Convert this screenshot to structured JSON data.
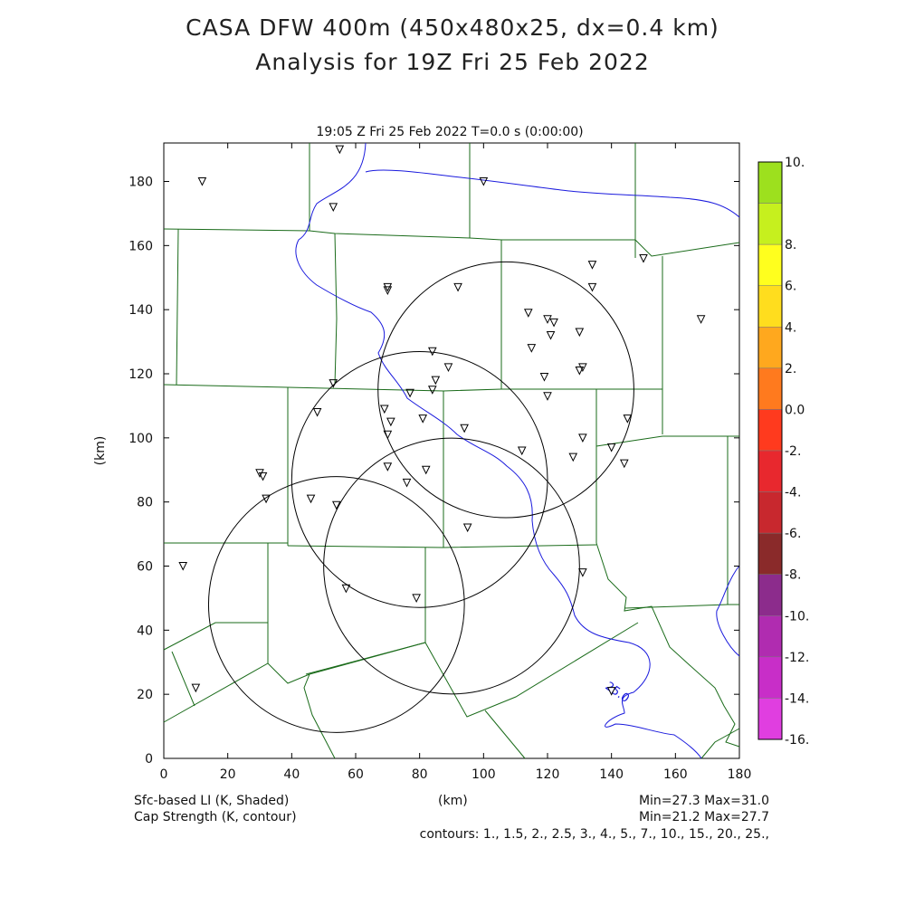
{
  "title": {
    "line1": "CASA DFW 400m (450x480x25, dx=0.4 km)",
    "line2": "Analysis for 19Z Fri 25 Feb 2022"
  },
  "plot": {
    "subtitle": "19:05 Z Fri 25 Feb 2022   T=0.0 s (0:00:00)",
    "xlabel": "(km)",
    "ylabel": "(km)",
    "xticks": [
      "0",
      "20",
      "40",
      "60",
      "80",
      "100",
      "120",
      "140",
      "160",
      "180"
    ],
    "yticks": [
      "0",
      "20",
      "40",
      "60",
      "80",
      "100",
      "120",
      "140",
      "160",
      "180"
    ],
    "contour_label": "25.0"
  },
  "colorbar": {
    "labels": [
      "10.",
      "8.",
      "6.",
      "4.",
      "2.",
      "0.0",
      "-2.",
      "-4.",
      "-6.",
      "-8.",
      "-10.",
      "-12.",
      "-14.",
      "-16."
    ],
    "colors": [
      "#9de01e",
      "#c6f01e",
      "#ffff1e",
      "#ffdd1e",
      "#ffa81e",
      "#ff7a1e",
      "#ff3a1e",
      "#e8282e",
      "#c8282e",
      "#8a2a2a",
      "#8c2c8c",
      "#b02cb0",
      "#c82ec8",
      "#e03ee0"
    ]
  },
  "footer": {
    "left1": "Sfc-based LI (K, Shaded)",
    "left2": "Cap Strength (K, contour)",
    "center": "(km)",
    "right1": "Min=27.3 Max=31.0",
    "right2": "Min=21.2 Max=27.7",
    "contours": "contours: 1., 1.5, 2., 2.5, 3., 4., 5., 7., 10., 15., 20., 25.,"
  },
  "map_colors": {
    "counties": "#1a6b1a",
    "contour": "#1a1add",
    "radar": "#000000"
  },
  "icon": "inverted-triangle-station-marker",
  "chart_data": {
    "type": "scatter",
    "xlim": [
      0,
      180
    ],
    "ylim": [
      0,
      192
    ],
    "radar_rings_km": [
      {
        "x": 107,
        "y": 115,
        "r": 40
      },
      {
        "x": 80,
        "y": 87,
        "r": 40
      },
      {
        "x": 90,
        "y": 60,
        "r": 40
      },
      {
        "x": 54,
        "y": 48,
        "r": 40
      }
    ],
    "stations_km": [
      [
        55,
        190
      ],
      [
        12,
        180
      ],
      [
        100,
        180
      ],
      [
        53,
        172
      ],
      [
        150,
        156
      ],
      [
        134,
        154
      ],
      [
        70,
        147
      ],
      [
        70,
        146
      ],
      [
        92,
        147
      ],
      [
        134,
        147
      ],
      [
        114,
        139
      ],
      [
        120,
        137
      ],
      [
        122,
        136
      ],
      [
        121,
        132
      ],
      [
        130,
        133
      ],
      [
        168,
        137
      ],
      [
        115,
        128
      ],
      [
        84,
        127
      ],
      [
        89,
        122
      ],
      [
        119,
        119
      ],
      [
        130,
        121
      ],
      [
        131,
        122
      ],
      [
        85,
        118
      ],
      [
        53,
        117
      ],
      [
        84,
        115
      ],
      [
        77,
        114
      ],
      [
        120,
        113
      ],
      [
        69,
        109
      ],
      [
        48,
        108
      ],
      [
        71,
        105
      ],
      [
        81,
        106
      ],
      [
        145,
        106
      ],
      [
        94,
        103
      ],
      [
        70,
        101
      ],
      [
        131,
        100
      ],
      [
        140,
        97
      ],
      [
        112,
        96
      ],
      [
        128,
        94
      ],
      [
        144,
        92
      ],
      [
        70,
        91
      ],
      [
        82,
        90
      ],
      [
        30,
        89
      ],
      [
        31,
        88
      ],
      [
        76,
        86
      ],
      [
        32,
        81
      ],
      [
        46,
        81
      ],
      [
        54,
        79
      ],
      [
        95,
        72
      ],
      [
        6,
        60
      ],
      [
        131,
        58
      ],
      [
        57,
        53
      ],
      [
        79,
        50
      ],
      [
        10,
        22
      ],
      [
        140,
        21
      ]
    ]
  }
}
